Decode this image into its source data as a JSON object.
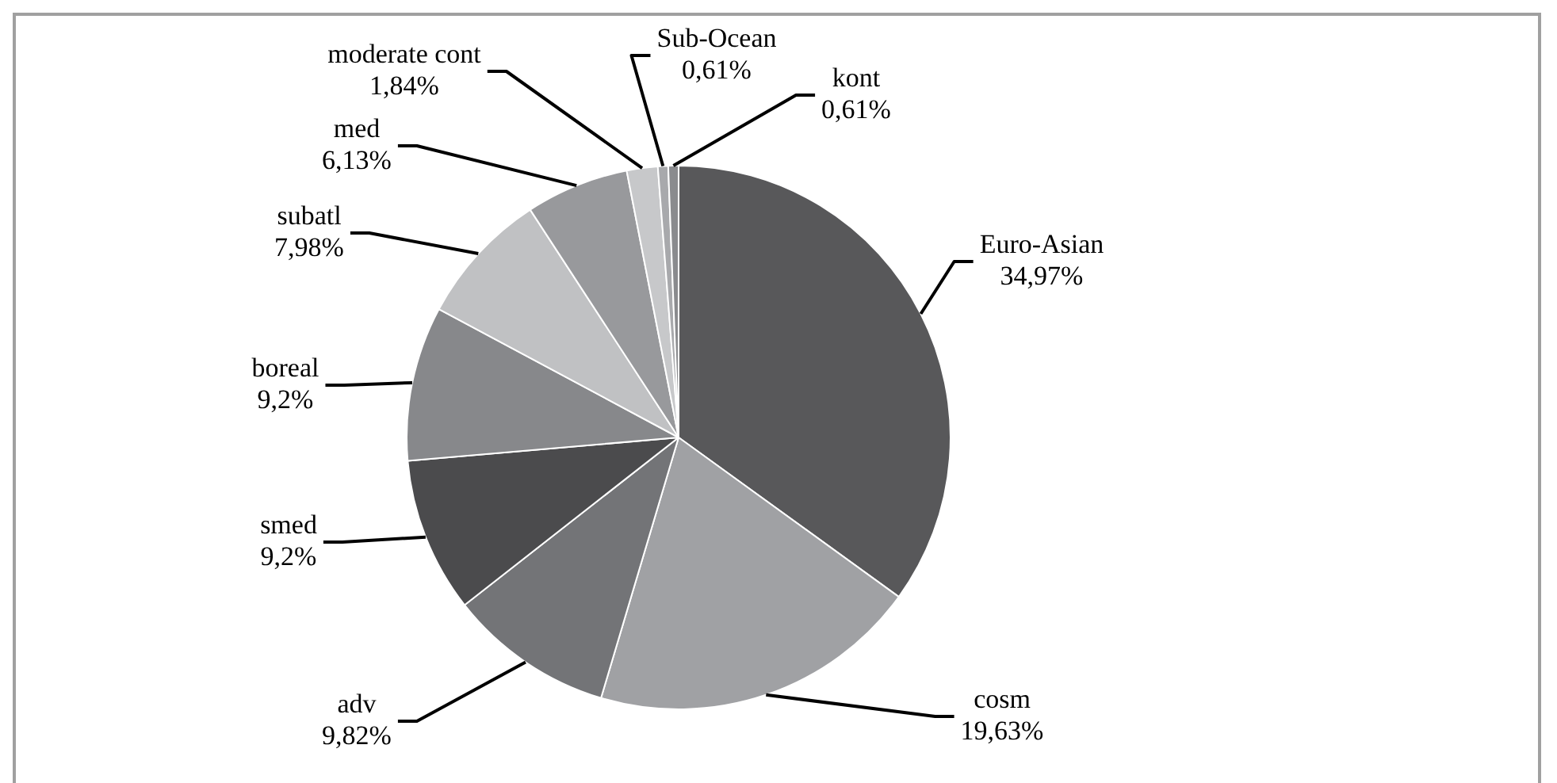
{
  "chart_data": {
    "type": "pie",
    "categories": [
      "Euro-Asian",
      "cosm",
      "adv",
      "smed",
      "boreal",
      "subatl",
      "med",
      "moderate cont",
      "Sub-Ocean",
      "kont"
    ],
    "values": [
      34.97,
      19.63,
      9.82,
      9.2,
      9.2,
      7.98,
      6.13,
      1.84,
      0.61,
      0.61
    ],
    "value_labels": [
      "34,97%",
      "19,63%",
      "9,82%",
      "9,2%",
      "9,2%",
      "7,98%",
      "6,13%",
      "1,84%",
      "0,61%",
      "0,61%"
    ],
    "colors": [
      "#58585a",
      "#a0a1a4",
      "#737477",
      "#4b4b4d",
      "#87888b",
      "#c0c1c3",
      "#98999c",
      "#c7c8ca",
      "#a8a9ac",
      "#8a8b8e"
    ],
    "legend": false
  }
}
